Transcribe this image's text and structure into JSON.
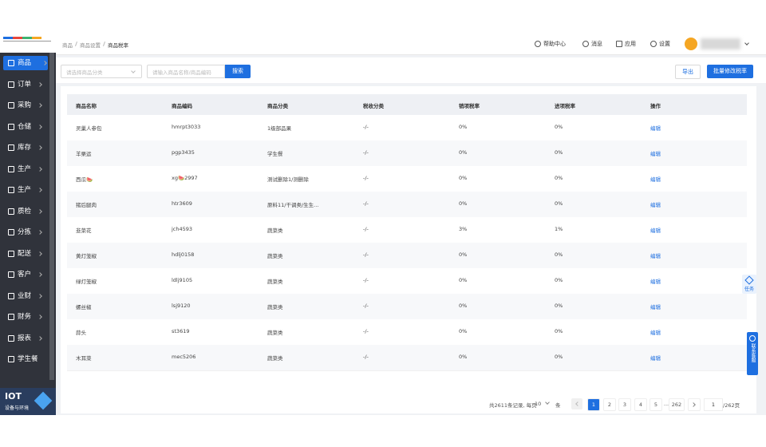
{
  "sidebar": {
    "items": [
      "商品",
      "订单",
      "采购",
      "仓储",
      "库存",
      "生产",
      "生产",
      "质检",
      "分拣",
      "配送",
      "客户",
      "业财",
      "财务",
      "报表",
      "学生餐"
    ],
    "iot": {
      "title": "IOT",
      "subtitle": "设备与环境"
    }
  },
  "header": {
    "breadcrumb": [
      "商品",
      "商品设置",
      "商品税率"
    ],
    "actions": [
      "帮助中心",
      "消息",
      "应用",
      "设置"
    ]
  },
  "toolbar": {
    "category_placeholder": "请选择商品分类",
    "search_placeholder": "请输入商品名称/商品编码",
    "search_button": "搜索",
    "export_button": "导出",
    "batch_button": "批量修改税率"
  },
  "table": {
    "columns": [
      "商品名称",
      "商品编码",
      "商品分类",
      "税收分类",
      "销项税率",
      "进项税率",
      "操作"
    ],
    "rows": [
      [
        "灵巢人参包",
        "hmrpt3033",
        "1级部品果",
        "-/-",
        "0%",
        "0%",
        "编辑"
      ],
      [
        "羊栗运",
        "pgp3435",
        "学生餐",
        "-/-",
        "0%",
        "0%",
        "编辑"
      ],
      [
        "西瓜🍉",
        "xg🍉2997",
        "测试删除1/测删除",
        "-/-",
        "0%",
        "0%",
        "编辑"
      ],
      [
        "猪后腿肉",
        "htr3609",
        "原料11/干调类/生生...",
        "-/-",
        "0%",
        "0%",
        "编辑"
      ],
      [
        "韭菜花",
        "jch4593",
        "蔬菜类",
        "-/-",
        "3%",
        "1%",
        "编辑"
      ],
      [
        "黄灯笼椒",
        "hdlj0158",
        "蔬菜类",
        "-/-",
        "0%",
        "0%",
        "编辑"
      ],
      [
        "绿灯笼椒",
        "ldlj9105",
        "蔬菜类",
        "-/-",
        "0%",
        "0%",
        "编辑"
      ],
      [
        "螺丝椒",
        "lsj9120",
        "蔬菜类",
        "-/-",
        "0%",
        "0%",
        "编辑"
      ],
      [
        "蒜头",
        "st3619",
        "蔬菜类",
        "-/-",
        "0%",
        "0%",
        "编辑"
      ],
      [
        "木耳菜",
        "mec5206",
        "蔬菜类",
        "-/-",
        "0%",
        "0%",
        "编辑"
      ]
    ]
  },
  "pagination": {
    "summary": "共2611条记录, 每页",
    "page_size": "10",
    "unit": "条",
    "pages": [
      "1",
      "2",
      "3",
      "4",
      "5",
      "...",
      "262"
    ],
    "jump": "1",
    "total_pages": "/262页"
  },
  "float": {
    "task": "任务",
    "service": "联系客服"
  }
}
